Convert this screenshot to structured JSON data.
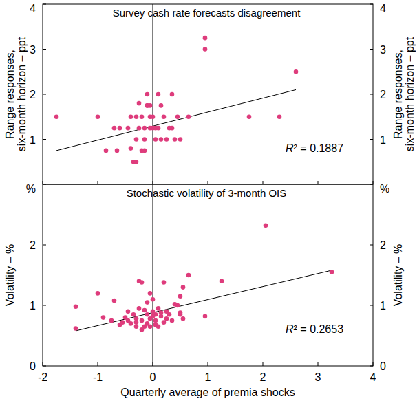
{
  "chart_data": [
    {
      "type": "scatter",
      "title": "Survey cash rate forecasts disagreement",
      "y_label": [
        "Range responses,",
        "six-month horizon – ppt"
      ],
      "color": "#de3c7c",
      "marker": "circle",
      "tick_labels": "y",
      "xlim": [
        -2,
        4
      ],
      "xticks": [
        -2,
        -1,
        0,
        1,
        2,
        3,
        4
      ],
      "ylim": [
        0,
        4
      ],
      "yticks": [
        1,
        2,
        3,
        4
      ],
      "x": [
        -1.75,
        -1.0,
        -0.85,
        -0.7,
        -0.6,
        -0.65,
        -0.45,
        -0.4,
        -0.35,
        -0.3,
        -0.3,
        -0.3,
        -0.25,
        -0.25,
        -0.2,
        -0.2,
        -0.15,
        -0.15,
        -0.15,
        -0.1,
        -0.1,
        -0.05,
        -0.05,
        -0.05,
        0,
        0,
        0.05,
        0.05,
        0.1,
        0.1,
        0.15,
        0.2,
        0.25,
        0.3,
        0.35,
        0.4,
        0.45,
        0.5,
        0.65,
        0.95,
        0.95,
        1.75,
        2.3,
        2.6,
        -0.1,
        -0.4,
        0.15,
        0.35
      ],
      "values": [
        1.5,
        1.5,
        0.75,
        1.25,
        1.25,
        0.75,
        1.25,
        0.8,
        0.5,
        1.0,
        0.5,
        1.5,
        1.8,
        1.25,
        0.75,
        1.5,
        1.0,
        0.75,
        1.25,
        1.75,
        2.0,
        1.5,
        1.25,
        1.75,
        1.25,
        1.5,
        1.0,
        1.25,
        1.25,
        2.0,
        1.0,
        1.5,
        1.0,
        1.25,
        2.0,
        1.0,
        1.5,
        1.0,
        1.5,
        3.25,
        3.0,
        1.5,
        1.5,
        2.5,
        1.75,
        1.5,
        1.75,
        1.25
      ],
      "trend_line": {
        "x": [
          -1.75,
          2.6
        ],
        "values": [
          0.75,
          2.1
        ]
      },
      "annotation": "R² = 0.1887"
    },
    {
      "type": "scatter",
      "title": "Stochastic volatility of 3-month OIS",
      "y_label": [
        "Volatility – %"
      ],
      "x_label": "Quarterly average of premia shocks",
      "color": "#de3c7c",
      "marker": "circle",
      "xlim": [
        -2,
        4
      ],
      "xticks": [
        -2,
        -1,
        0,
        1,
        2,
        3,
        4
      ],
      "ylim": [
        0,
        3
      ],
      "yticks": [
        0,
        1,
        2,
        {
          "value": 3,
          "label": "%"
        }
      ],
      "x": [
        -1.4,
        -1.4,
        -1.0,
        -0.9,
        -0.75,
        -0.7,
        -0.6,
        -0.55,
        -0.5,
        -0.45,
        -0.45,
        -0.4,
        -0.35,
        -0.3,
        -0.3,
        -0.25,
        -0.25,
        -0.2,
        -0.2,
        -0.15,
        -0.15,
        -0.1,
        -0.1,
        -0.1,
        -0.05,
        -0.05,
        -0.05,
        0,
        0,
        0,
        0.05,
        0.05,
        0.05,
        0.1,
        0.1,
        0.15,
        0.2,
        0.2,
        0.25,
        0.3,
        0.35,
        0.4,
        0.45,
        0.5,
        0.5,
        0.5,
        0.55,
        0.55,
        0.65,
        0.95,
        1.25,
        2.05,
        3.25,
        -0.3,
        0.25,
        0.15,
        -0.2
      ],
      "values": [
        0.62,
        0.98,
        1.2,
        0.8,
        0.75,
        1.08,
        0.68,
        0.72,
        0.8,
        0.75,
        0.9,
        0.7,
        0.85,
        0.78,
        0.72,
        0.95,
        1.4,
        1.38,
        0.75,
        0.65,
        0.92,
        0.85,
        1.05,
        0.7,
        1.2,
        0.78,
        0.65,
        0.9,
        0.82,
        1.1,
        0.85,
        0.75,
        0.68,
        0.95,
        0.65,
        0.88,
        0.72,
        1.38,
        0.78,
        0.85,
        0.75,
        1.02,
        1.0,
        0.88,
        0.85,
        1.15,
        1.3,
        0.78,
        1.5,
        0.82,
        1.4,
        2.32,
        1.55,
        0.65,
        0.9,
        0.82,
        0.6
      ],
      "trend_line": {
        "x": [
          -1.4,
          3.25
        ],
        "values": [
          0.58,
          1.58
        ]
      },
      "annotation": "R² = 0.2653"
    }
  ]
}
